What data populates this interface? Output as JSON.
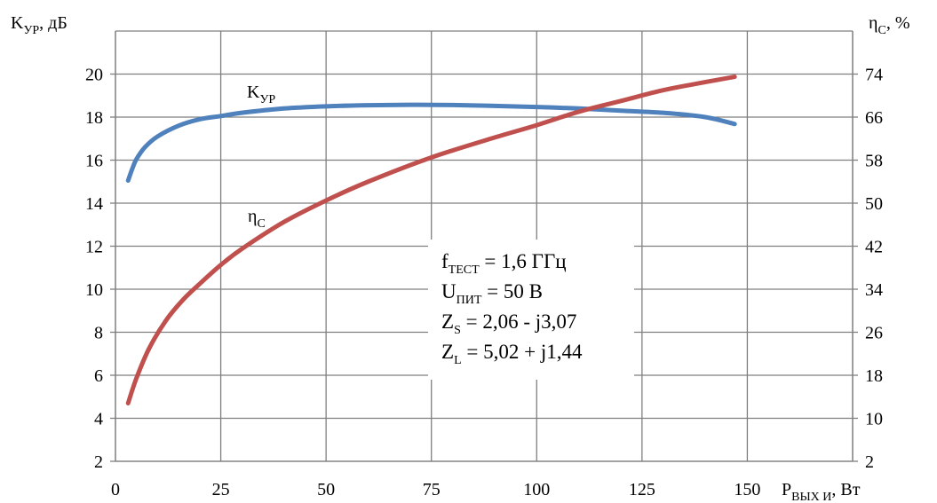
{
  "chart_data": {
    "type": "line",
    "x": {
      "ticks": [
        0,
        25,
        50,
        75,
        100,
        125,
        150
      ],
      "range": [
        0,
        175
      ],
      "label": {
        "main": "P",
        "sub": "ВЫХ И",
        "suffix": ", Вт"
      }
    },
    "y_left": {
      "ticks": [
        2,
        4,
        6,
        8,
        10,
        12,
        14,
        16,
        18,
        20
      ],
      "range": [
        2,
        22
      ],
      "label": {
        "main": "K",
        "sub": "УР",
        "suffix": ", дБ"
      }
    },
    "y_right": {
      "ticks": [
        2,
        10,
        18,
        26,
        34,
        42,
        50,
        58,
        66,
        74
      ],
      "range": [
        2,
        82
      ],
      "label": {
        "main": "η",
        "sub": "C",
        "suffix": ", %"
      }
    },
    "grid": true,
    "series": [
      {
        "name": "K_УР",
        "label": {
          "main": "K",
          "sub": "УР"
        },
        "axis": "left",
        "color": "#4f81bd",
        "points": [
          [
            3,
            15.05
          ],
          [
            4,
            15.6
          ],
          [
            5,
            16.05
          ],
          [
            7,
            16.6
          ],
          [
            10,
            17.1
          ],
          [
            15,
            17.6
          ],
          [
            20,
            17.9
          ],
          [
            25,
            18.05
          ],
          [
            30,
            18.2
          ],
          [
            40,
            18.4
          ],
          [
            50,
            18.5
          ],
          [
            60,
            18.55
          ],
          [
            70,
            18.57
          ],
          [
            80,
            18.56
          ],
          [
            90,
            18.52
          ],
          [
            100,
            18.47
          ],
          [
            110,
            18.4
          ],
          [
            120,
            18.3
          ],
          [
            130,
            18.2
          ],
          [
            140,
            18.0
          ],
          [
            147,
            17.68
          ]
        ]
      },
      {
        "name": "η_C",
        "label": {
          "main": "η",
          "sub": "C"
        },
        "axis": "right",
        "color": "#c0504d",
        "points": [
          [
            3,
            12.8
          ],
          [
            5,
            17.5
          ],
          [
            8,
            23
          ],
          [
            12,
            28.2
          ],
          [
            16,
            32
          ],
          [
            20,
            35
          ],
          [
            25,
            38.5
          ],
          [
            30,
            41.5
          ],
          [
            40,
            46.5
          ],
          [
            50,
            50.5
          ],
          [
            60,
            54
          ],
          [
            75,
            58.5
          ],
          [
            90,
            62.2
          ],
          [
            100,
            64.5
          ],
          [
            110,
            67
          ],
          [
            120,
            69
          ],
          [
            130,
            71
          ],
          [
            140,
            72.5
          ],
          [
            147,
            73.5
          ]
        ]
      }
    ],
    "annotation": [
      {
        "main": "f",
        "sub": "ТЕСТ",
        "rest": " = 1,6 ГГц"
      },
      {
        "main": "U",
        "sub": "ПИТ",
        "rest": " = 50 В"
      },
      {
        "main": "Z",
        "sub": "S",
        "rest": " = 2,06 - j3,07"
      },
      {
        "main": "Z",
        "sub": "L",
        "rest": " = 5,02 + j1,44"
      }
    ]
  }
}
